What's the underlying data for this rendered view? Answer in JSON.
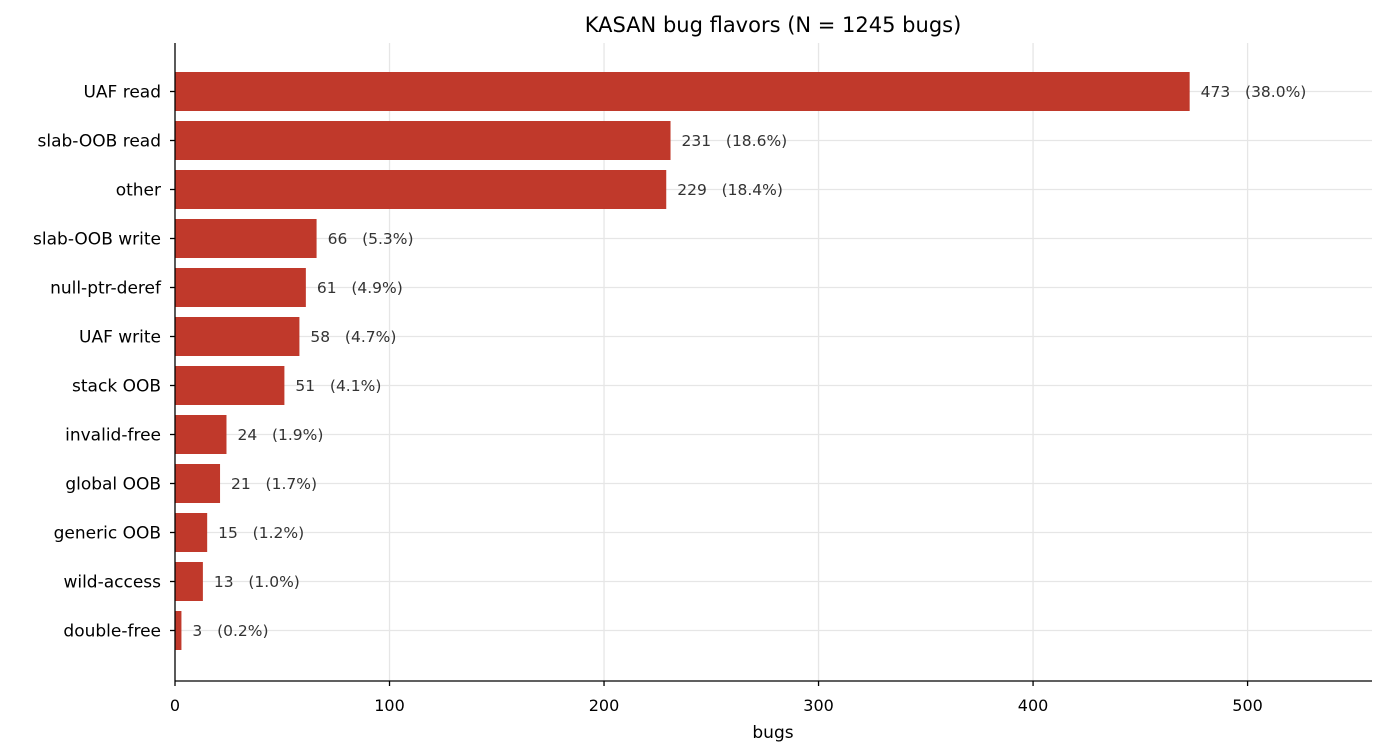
{
  "chart_data": {
    "type": "bar",
    "orientation": "horizontal",
    "title": "KASAN bug flavors  (N = 1245 bugs)",
    "xlabel": "bugs",
    "ylabel": "",
    "xlim": [
      0,
      558
    ],
    "xticks": [
      "0",
      "100",
      "200",
      "300",
      "400",
      "500"
    ],
    "grid": true,
    "bar_color": "#c0392b",
    "categories": [
      "UAF read",
      "slab-OOB read",
      "other",
      "slab-OOB write",
      "null-ptr-deref",
      "UAF write",
      "stack OOB",
      "invalid-free",
      "global OOB",
      "generic OOB",
      "wild-access",
      "double-free"
    ],
    "values": [
      473,
      231,
      229,
      66,
      61,
      58,
      51,
      24,
      21,
      15,
      13,
      3
    ],
    "value_labels": [
      "473   (38.0%)",
      "231   (18.6%)",
      "229   (18.4%)",
      "66   (5.3%)",
      "61   (4.9%)",
      "58   (4.7%)",
      "51   (4.1%)",
      "24   (1.9%)",
      "21   (1.7%)",
      "15   (1.2%)",
      "13   (1.0%)",
      "3   (0.2%)"
    ]
  }
}
